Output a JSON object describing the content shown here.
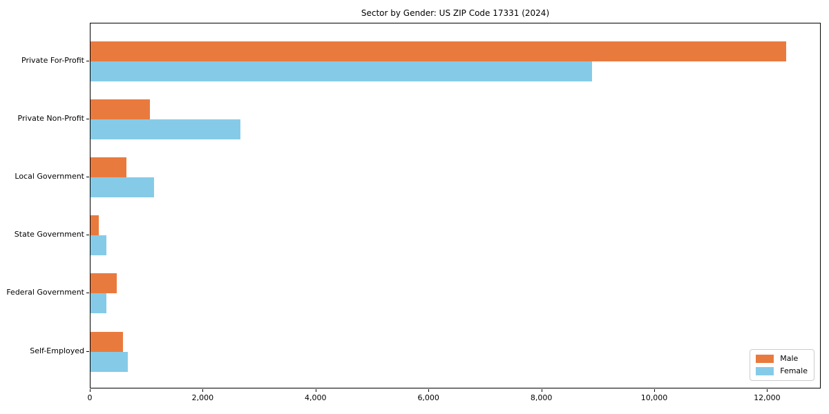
{
  "figure": {
    "background": "#ffffff"
  },
  "chart_data": {
    "type": "bar",
    "orientation": "horizontal",
    "title": "Sector by Gender: US ZIP Code 17331 (2024)",
    "xlabel": "",
    "ylabel": "",
    "categories": [
      "Private For-Profit",
      "Private Non-Profit",
      "Local Government",
      "State Government",
      "Federal Government",
      "Self-Employed"
    ],
    "series": [
      {
        "name": "Male",
        "color": "#e97a3e",
        "values": [
          12320,
          1050,
          640,
          150,
          460,
          570
        ]
      },
      {
        "name": "Female",
        "color": "#85cbe8",
        "values": [
          8890,
          2660,
          1130,
          275,
          275,
          665
        ]
      }
    ],
    "xlim": [
      0,
      12950
    ],
    "xticks": {
      "values": [
        0,
        2000,
        4000,
        6000,
        8000,
        10000,
        12000
      ],
      "labels": [
        "0",
        "2,000",
        "4,000",
        "6,000",
        "8,000",
        "10,000",
        "12,000"
      ]
    },
    "grid": false,
    "legend_position": "lower right",
    "axis_color": "#000000"
  }
}
